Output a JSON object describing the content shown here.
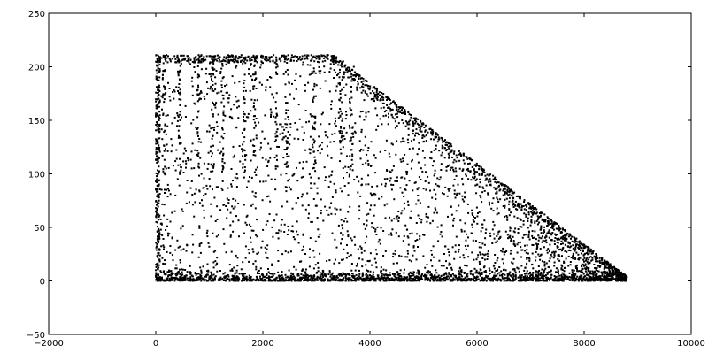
{
  "chart_data": {
    "type": "scatter",
    "title": "",
    "xlabel": "",
    "ylabel": "",
    "xlim": [
      -2000,
      10000
    ],
    "ylim": [
      -50,
      250
    ],
    "x_ticks": [
      "−2000",
      "0",
      "2000",
      "4000",
      "6000",
      "8000",
      "10000"
    ],
    "y_ticks": [
      "−50",
      "0",
      "50",
      "100",
      "150",
      "200",
      "250"
    ],
    "grid": false,
    "legend": "none",
    "marker_color": "#000000",
    "series": [
      {
        "description_points": [
          [
            50,
            210
          ],
          [
            200,
            211
          ],
          [
            400,
            209
          ],
          [
            600,
            210
          ],
          [
            800,
            211
          ],
          [
            1000,
            210
          ],
          [
            1200,
            209
          ],
          [
            1400,
            210
          ],
          [
            1600,
            211
          ],
          [
            1800,
            209
          ],
          [
            2000,
            210
          ],
          [
            2200,
            211
          ],
          [
            2400,
            209
          ],
          [
            2600,
            210
          ],
          [
            2800,
            208
          ],
          [
            3000,
            210
          ],
          [
            3200,
            211
          ],
          [
            3300,
            209
          ],
          [
            3500,
            205
          ],
          [
            3700,
            200
          ],
          [
            3800,
            192
          ],
          [
            4000,
            180
          ],
          [
            4200,
            170
          ],
          [
            4400,
            160
          ],
          [
            4600,
            150
          ],
          [
            4800,
            140
          ],
          [
            5000,
            130
          ],
          [
            5200,
            122
          ],
          [
            5400,
            115
          ],
          [
            5600,
            105
          ],
          [
            5800,
            98
          ],
          [
            6000,
            90
          ],
          [
            6200,
            82
          ],
          [
            6400,
            74
          ],
          [
            6600,
            66
          ],
          [
            6800,
            58
          ],
          [
            7000,
            52
          ],
          [
            7200,
            45
          ],
          [
            7400,
            38
          ],
          [
            7600,
            30
          ],
          [
            7800,
            24
          ],
          [
            8000,
            18
          ],
          [
            8200,
            12
          ],
          [
            8400,
            7
          ],
          [
            8600,
            3
          ],
          [
            8750,
            1
          ],
          [
            30,
            190
          ],
          [
            40,
            170
          ],
          [
            60,
            150
          ],
          [
            35,
            120
          ],
          [
            45,
            100
          ],
          [
            55,
            80
          ],
          [
            60,
            60
          ],
          [
            40,
            40
          ],
          [
            70,
            20
          ],
          [
            50,
            5
          ],
          [
            100,
            2
          ],
          [
            300,
            1
          ],
          [
            500,
            3
          ],
          [
            700,
            0
          ],
          [
            900,
            2
          ],
          [
            1100,
            1
          ],
          [
            1300,
            3
          ],
          [
            1500,
            0
          ],
          [
            1700,
            2
          ],
          [
            1900,
            1
          ],
          [
            2100,
            3
          ],
          [
            2300,
            0
          ],
          [
            2500,
            2
          ],
          [
            2700,
            1
          ],
          [
            2900,
            3
          ],
          [
            3100,
            0
          ],
          [
            3300,
            2
          ],
          [
            3500,
            1
          ],
          [
            3700,
            3
          ],
          [
            3900,
            0
          ],
          [
            4100,
            2
          ],
          [
            4300,
            1
          ],
          [
            4500,
            3
          ],
          [
            4700,
            0
          ],
          [
            4900,
            2
          ],
          [
            5100,
            1
          ],
          [
            5300,
            3
          ],
          [
            5500,
            0
          ],
          [
            5700,
            2
          ],
          [
            5900,
            1
          ],
          [
            6100,
            3
          ],
          [
            6300,
            0
          ],
          [
            6500,
            2
          ],
          [
            6700,
            1
          ],
          [
            6900,
            3
          ],
          [
            7100,
            0
          ],
          [
            7300,
            2
          ],
          [
            7500,
            1
          ],
          [
            7700,
            3
          ],
          [
            7900,
            0
          ],
          [
            8100,
            2
          ],
          [
            8300,
            1
          ],
          [
            8500,
            2
          ],
          [
            8700,
            1
          ]
        ]
      }
    ]
  }
}
